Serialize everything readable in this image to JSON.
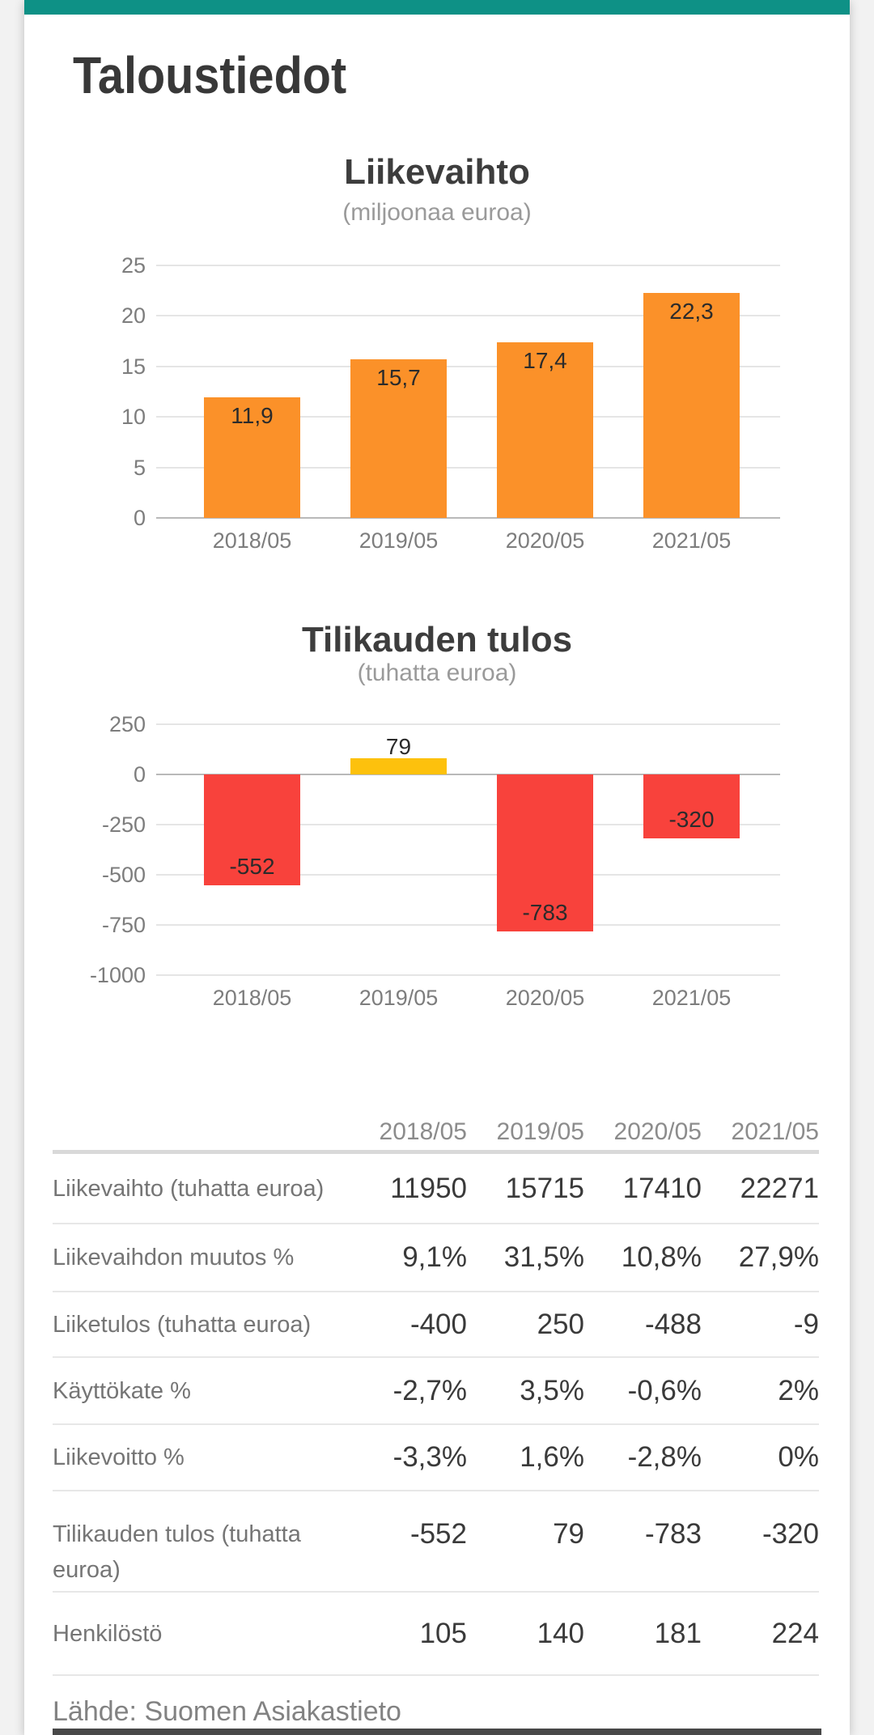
{
  "page_title": "Taloustiedot",
  "colors": {
    "accent_teal": "#0e9186",
    "revenue_bar_orange": "#fb9129",
    "loss_bar_red": "#f8423c",
    "profit_bar_yellow": "#fdc10d"
  },
  "chart_data": [
    {
      "type": "bar",
      "title": "Liikevaihto",
      "subtitle": "(miljoonaa euroa)",
      "categories": [
        "2018/05",
        "2019/05",
        "2020/05",
        "2021/05"
      ],
      "values": [
        11.9,
        15.7,
        17.4,
        22.3
      ],
      "value_labels": [
        "11,9",
        "15,7",
        "17,4",
        "22,3"
      ],
      "bar_colors": [
        "#fb9129",
        "#fb9129",
        "#fb9129",
        "#fb9129"
      ],
      "ylim": [
        0,
        25
      ],
      "yticks": [
        25,
        20,
        15,
        10,
        5,
        0
      ],
      "ytick_labels": [
        "25",
        "20",
        "15",
        "10",
        "5",
        "0"
      ],
      "grid": true,
      "legend": "none"
    },
    {
      "type": "bar",
      "title": "Tilikauden tulos",
      "subtitle": "(tuhatta euroa)",
      "categories": [
        "2018/05",
        "2019/05",
        "2020/05",
        "2021/05"
      ],
      "values": [
        -552,
        79,
        -783,
        -320
      ],
      "value_labels": [
        "-552",
        "79",
        "-783",
        "-320"
      ],
      "bar_colors": [
        "#f8423c",
        "#fdc10d",
        "#f8423c",
        "#f8423c"
      ],
      "ylim": [
        -1000,
        250
      ],
      "yticks": [
        250,
        0,
        -250,
        -500,
        -750,
        -1000
      ],
      "ytick_labels": [
        "250",
        "0",
        "-250",
        "-500",
        "-750",
        "-1000"
      ],
      "grid": true,
      "legend": "none"
    }
  ],
  "table": {
    "column_headers": [
      "2018/05",
      "2019/05",
      "2020/05",
      "2021/05"
    ],
    "rows": [
      {
        "label": "Liikevaihto (tuhatta euroa)",
        "values": [
          "11950",
          "15715",
          "17410",
          "22271"
        ]
      },
      {
        "label": "Liikevaihdon muutos %",
        "values": [
          "9,1%",
          "31,5%",
          "10,8%",
          "27,9%"
        ]
      },
      {
        "label": "Liiketulos (tuhatta euroa)",
        "values": [
          "-400",
          "250",
          "-488",
          "-9"
        ]
      },
      {
        "label": "Käyttökate %",
        "values": [
          "-2,7%",
          "3,5%",
          "-0,6%",
          "2%"
        ]
      },
      {
        "label": "Liikevoitto %",
        "values": [
          "-3,3%",
          "1,6%",
          "-2,8%",
          "0%"
        ]
      },
      {
        "label": "Tilikauden tulos (tuhatta euroa)",
        "values": [
          "-552",
          "79",
          "-783",
          "-320"
        ]
      },
      {
        "label": "Henkilöstö",
        "values": [
          "105",
          "140",
          "181",
          "224"
        ]
      }
    ]
  },
  "footer": {
    "source_label": "Lähde: Suomen Asiakastieto"
  }
}
